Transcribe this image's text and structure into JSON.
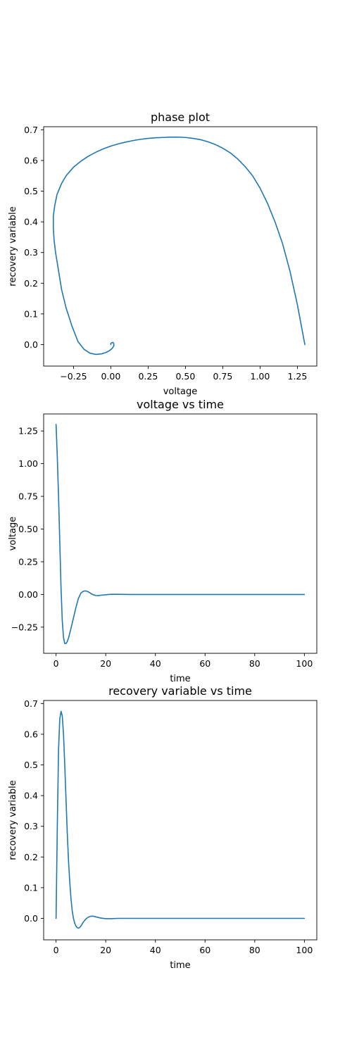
{
  "chart_data": [
    {
      "type": "line",
      "title": "phase plot",
      "xlabel": "voltage",
      "ylabel": "recovery variable",
      "xlim": [
        -0.45,
        1.38
      ],
      "ylim": [
        -0.07,
        0.71
      ],
      "xticks": [
        -0.25,
        0.0,
        0.25,
        0.5,
        0.75,
        1.0,
        1.25
      ],
      "xtick_labels": [
        "−0.25",
        "0.00",
        "0.25",
        "0.50",
        "0.75",
        "1.00",
        "1.25"
      ],
      "yticks": [
        0.0,
        0.1,
        0.2,
        0.3,
        0.4,
        0.5,
        0.6,
        0.7
      ],
      "ytick_labels": [
        "0.0",
        "0.1",
        "0.2",
        "0.3",
        "0.4",
        "0.5",
        "0.6",
        "0.7"
      ],
      "grid": false,
      "color": "#1f77b4",
      "series": [
        {
          "x": [
            1.3,
            1.25,
            1.2,
            1.15,
            1.1,
            1.05,
            1.0,
            0.95,
            0.9,
            0.85,
            0.8,
            0.75,
            0.7,
            0.65,
            0.6,
            0.55,
            0.5,
            0.45,
            0.4,
            0.35,
            0.3,
            0.25,
            0.2,
            0.15,
            0.1,
            0.05,
            0.0,
            -0.05,
            -0.1,
            -0.15,
            -0.2,
            -0.25,
            -0.3,
            -0.33,
            -0.36,
            -0.375,
            -0.385,
            -0.385,
            -0.38,
            -0.37,
            -0.35,
            -0.33,
            -0.3,
            -0.26,
            -0.22,
            -0.18,
            -0.14,
            -0.1,
            -0.06,
            -0.03,
            -0.01,
            0.01,
            0.02,
            0.02,
            0.015,
            0.005,
            0.0,
            0.0
          ],
          "y": [
            0.0,
            0.13,
            0.24,
            0.33,
            0.4,
            0.46,
            0.51,
            0.55,
            0.58,
            0.605,
            0.625,
            0.64,
            0.652,
            0.661,
            0.668,
            0.672,
            0.675,
            0.676,
            0.676,
            0.675,
            0.674,
            0.672,
            0.669,
            0.665,
            0.66,
            0.654,
            0.647,
            0.638,
            0.627,
            0.614,
            0.598,
            0.578,
            0.55,
            0.525,
            0.49,
            0.455,
            0.42,
            0.38,
            0.34,
            0.3,
            0.24,
            0.18,
            0.12,
            0.06,
            0.01,
            -0.015,
            -0.028,
            -0.032,
            -0.03,
            -0.025,
            -0.02,
            -0.012,
            -0.004,
            0.003,
            0.007,
            0.006,
            0.003,
            0.0
          ]
        }
      ]
    },
    {
      "type": "line",
      "title": "voltage vs time",
      "xlabel": "time",
      "ylabel": "voltage",
      "xlim": [
        -5,
        105
      ],
      "ylim": [
        -0.45,
        1.38
      ],
      "xticks": [
        0,
        20,
        40,
        60,
        80,
        100
      ],
      "xtick_labels": [
        "0",
        "20",
        "40",
        "60",
        "80",
        "100"
      ],
      "yticks": [
        -0.25,
        0.0,
        0.25,
        0.5,
        0.75,
        1.0,
        1.25
      ],
      "ytick_labels": [
        "−0.25",
        "0.00",
        "0.25",
        "0.50",
        "0.75",
        "1.00",
        "1.25"
      ],
      "grid": false,
      "color": "#1f77b4",
      "series": [
        {
          "x": [
            0,
            0.5,
            1.0,
            1.5,
            2.0,
            2.5,
            3.0,
            3.5,
            4.0,
            4.5,
            5.0,
            6.0,
            7.0,
            8.0,
            9.0,
            10.0,
            11.0,
            12.0,
            13.0,
            14.0,
            15.0,
            16.0,
            17.0,
            18.0,
            20.0,
            22.0,
            25.0,
            30.0,
            40.0,
            60.0,
            80.0,
            100.0
          ],
          "y": [
            1.3,
            1.05,
            0.75,
            0.4,
            0.05,
            -0.2,
            -0.33,
            -0.375,
            -0.375,
            -0.36,
            -0.335,
            -0.26,
            -0.18,
            -0.1,
            -0.03,
            0.01,
            0.025,
            0.027,
            0.02,
            0.008,
            -0.003,
            -0.008,
            -0.009,
            -0.006,
            -0.002,
            0.001,
            0.001,
            0.0,
            0.0,
            0.0,
            0.0,
            0.0
          ]
        }
      ]
    },
    {
      "type": "line",
      "title": "recovery variable vs time",
      "xlabel": "time",
      "ylabel": "recovery variable",
      "xlim": [
        -5,
        105
      ],
      "ylim": [
        -0.07,
        0.71
      ],
      "xticks": [
        0,
        20,
        40,
        60,
        80,
        100
      ],
      "xtick_labels": [
        "0",
        "20",
        "40",
        "60",
        "80",
        "100"
      ],
      "yticks": [
        0.0,
        0.1,
        0.2,
        0.3,
        0.4,
        0.5,
        0.6,
        0.7
      ],
      "ytick_labels": [
        "0.0",
        "0.1",
        "0.2",
        "0.3",
        "0.4",
        "0.5",
        "0.6",
        "0.7"
      ],
      "grid": false,
      "color": "#1f77b4",
      "series": [
        {
          "x": [
            0,
            0.5,
            1.0,
            1.5,
            2.0,
            2.5,
            3.0,
            3.5,
            4.0,
            4.5,
            5.0,
            5.5,
            6.0,
            6.5,
            7.0,
            7.5,
            8.0,
            8.5,
            9.0,
            9.5,
            10.0,
            11.0,
            12.0,
            13.0,
            14.0,
            15.0,
            16.0,
            17.0,
            18.0,
            20.0,
            22.0,
            25.0,
            30.0,
            40.0,
            60.0,
            80.0,
            100.0
          ],
          "y": [
            0.0,
            0.3,
            0.55,
            0.65,
            0.675,
            0.66,
            0.6,
            0.5,
            0.39,
            0.28,
            0.19,
            0.12,
            0.065,
            0.025,
            0.0,
            -0.015,
            -0.025,
            -0.03,
            -0.032,
            -0.03,
            -0.025,
            -0.012,
            -0.002,
            0.004,
            0.007,
            0.007,
            0.005,
            0.003,
            0.001,
            -0.001,
            -0.001,
            0.0,
            0.0,
            0.0,
            0.0,
            0.0,
            0.0
          ]
        }
      ]
    }
  ]
}
